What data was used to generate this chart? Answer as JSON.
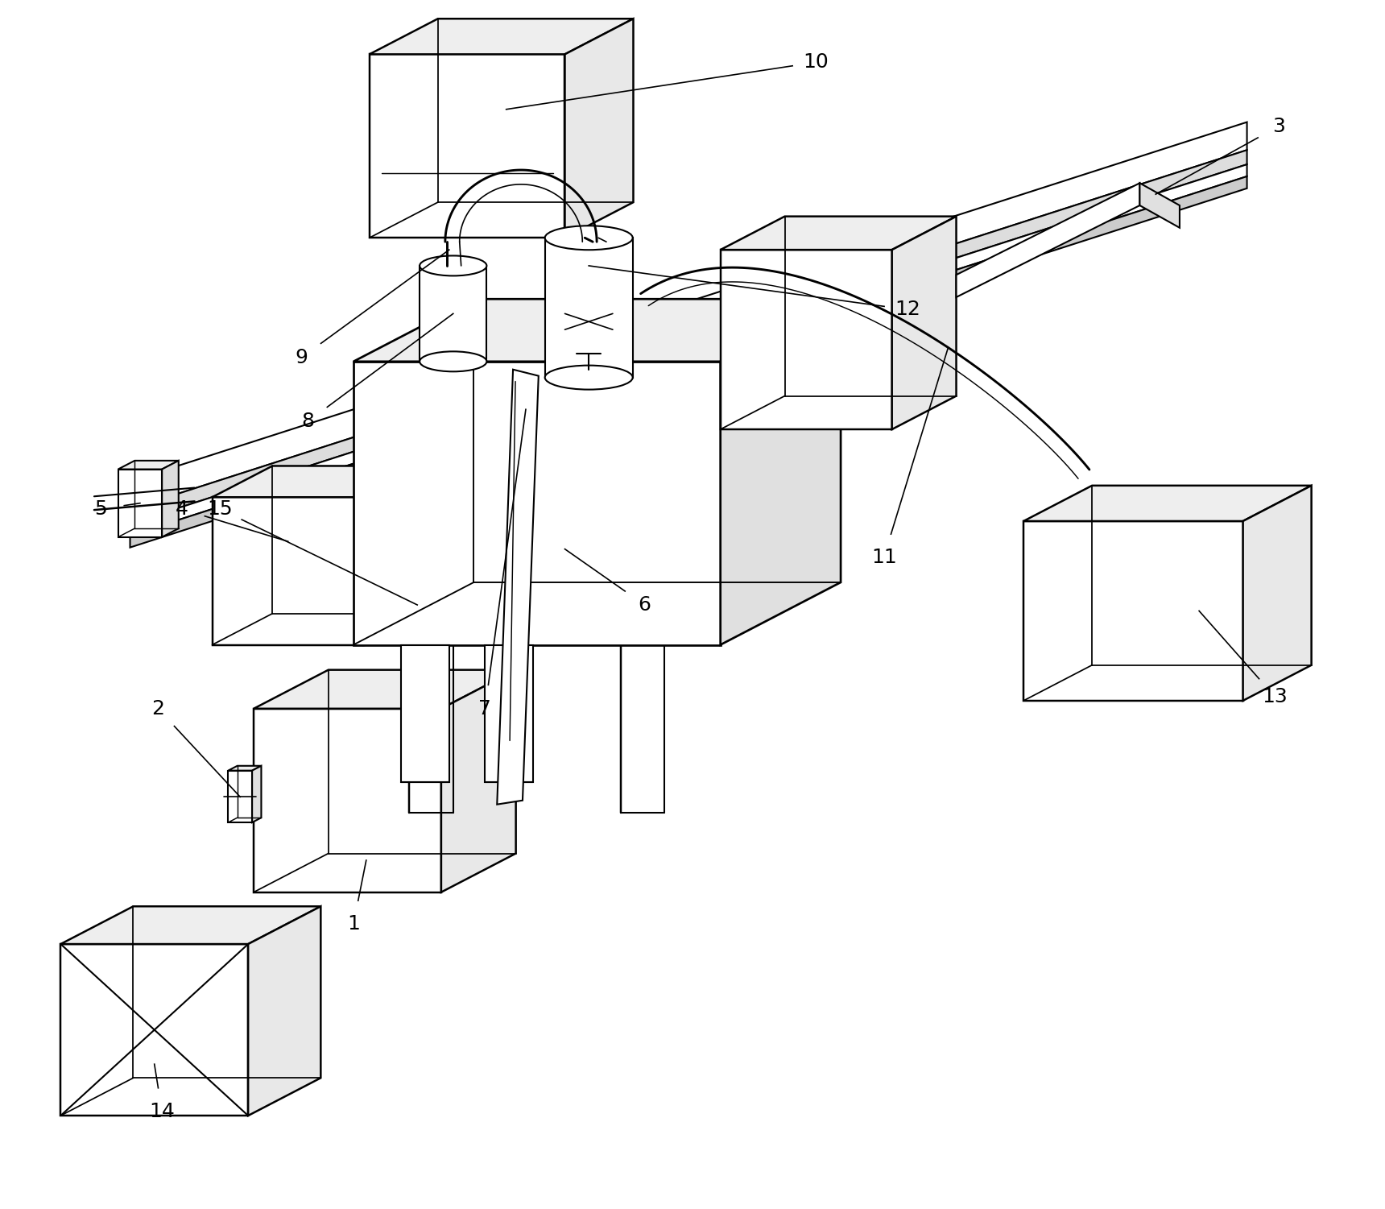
{
  "bg_color": "#ffffff",
  "line_color": "#000000",
  "lw": 1.5,
  "fig_width": 17.2,
  "fig_height": 15.01
}
